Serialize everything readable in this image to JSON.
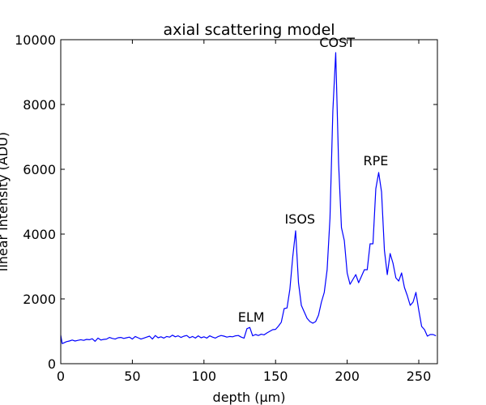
{
  "chart_data": {
    "type": "line",
    "title": "axial scattering model",
    "xlabel": "depth (μm)",
    "ylabel": "linear intensity (ADU)",
    "xlim": [
      0,
      263
    ],
    "ylim": [
      0,
      10000
    ],
    "xticks": [
      0,
      50,
      100,
      150,
      200,
      250
    ],
    "yticks": [
      0,
      2000,
      4000,
      6000,
      8000,
      10000
    ],
    "grid": false,
    "line_color": "#0000ff",
    "series": [
      {
        "x": [
          0,
          1,
          2,
          4,
          6,
          8,
          10,
          12,
          14,
          16,
          18,
          20,
          22,
          24,
          26,
          28,
          30,
          32,
          34,
          36,
          38,
          40,
          42,
          44,
          46,
          48,
          50,
          52,
          54,
          56,
          58,
          60,
          62,
          64,
          66,
          68,
          70,
          72,
          74,
          76,
          78,
          80,
          82,
          84,
          86,
          88,
          90,
          92,
          94,
          96,
          98,
          100,
          102,
          104,
          106,
          108,
          110,
          112,
          114,
          116,
          118,
          120,
          122,
          124,
          126,
          128,
          130,
          132,
          134,
          136,
          138,
          140,
          142,
          144,
          146,
          148,
          150,
          152,
          154,
          156,
          158,
          160,
          162,
          164,
          166,
          168,
          170,
          172,
          174,
          176,
          178,
          180,
          182,
          184,
          186,
          188,
          190,
          192,
          194,
          196,
          198,
          200,
          202,
          204,
          206,
          208,
          210,
          212,
          214,
          216,
          218,
          220,
          222,
          224,
          226,
          228,
          230,
          232,
          234,
          236,
          238,
          240,
          242,
          244,
          246,
          248,
          250,
          252,
          254,
          256,
          258,
          260,
          262
        ],
        "values": [
          880,
          620,
          640,
          680,
          700,
          730,
          700,
          720,
          740,
          720,
          750,
          740,
          770,
          690,
          790,
          730,
          750,
          760,
          810,
          780,
          760,
          800,
          810,
          780,
          800,
          820,
          760,
          840,
          800,
          760,
          790,
          820,
          850,
          760,
          870,
          800,
          830,
          790,
          840,
          820,
          880,
          830,
          860,
          810,
          850,
          870,
          800,
          840,
          790,
          860,
          800,
          830,
          790,
          860,
          820,
          790,
          840,
          870,
          850,
          820,
          840,
          830,
          860,
          870,
          820,
          790,
          1080,
          1120,
          860,
          900,
          870,
          910,
          890,
          950,
          1000,
          1050,
          1060,
          1160,
          1280,
          1700,
          1720,
          2300,
          3300,
          4100,
          2500,
          1800,
          1600,
          1400,
          1300,
          1250,
          1300,
          1500,
          1900,
          2200,
          2900,
          4500,
          7800,
          9600,
          6200,
          4200,
          3800,
          2800,
          2450,
          2600,
          2750,
          2500,
          2700,
          2900,
          2900,
          3700,
          3700,
          5400,
          5900,
          5300,
          3500,
          2750,
          3400,
          3100,
          2650,
          2550,
          2800,
          2350,
          2100,
          1800,
          1900,
          2200,
          1650,
          1150,
          1050,
          850,
          900,
          900,
          860
        ]
      }
    ],
    "annotations": [
      {
        "text": "ELM",
        "x": 133,
        "y": 1120
      },
      {
        "text": "ISOS",
        "x": 167,
        "y": 4150
      },
      {
        "text": "COST",
        "x": 193,
        "y": 9600
      },
      {
        "text": "RPE",
        "x": 220,
        "y": 5950
      }
    ]
  }
}
